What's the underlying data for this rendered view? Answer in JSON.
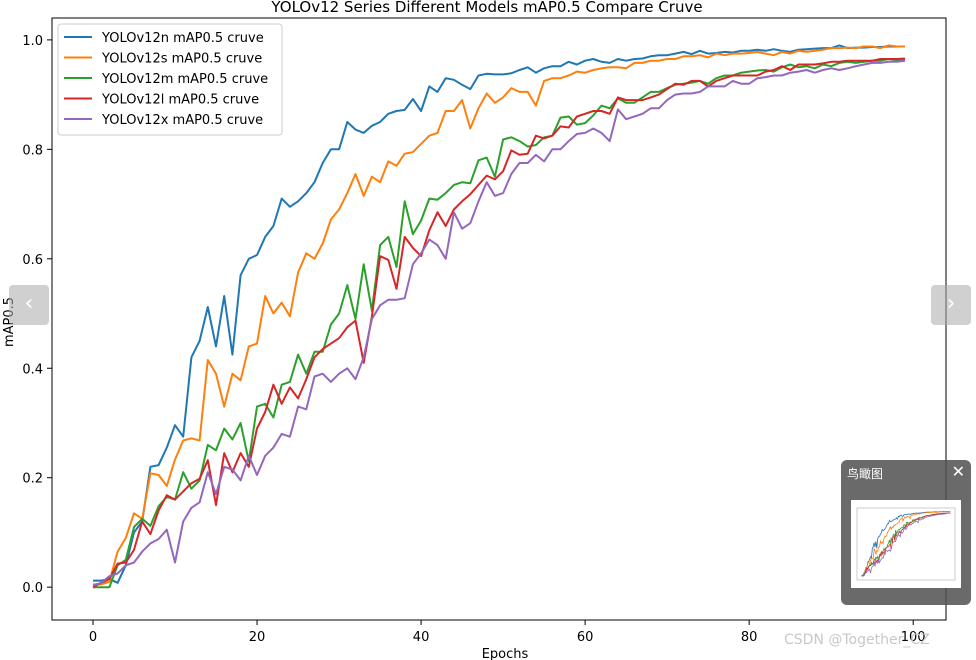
{
  "chart_data": {
    "type": "line",
    "title": "YOLOv12 Series Different Models mAP0.5 Compare Cruve",
    "xlabel": "Epochs",
    "ylabel": "mAP0.5",
    "xlim": [
      -5,
      104
    ],
    "ylim": [
      -0.06,
      1.04
    ],
    "x_ticks": [
      "0",
      "20",
      "40",
      "60",
      "80",
      "100"
    ],
    "x_tick_values": [
      0,
      20,
      40,
      60,
      80,
      100
    ],
    "y_ticks": [
      "0.0",
      "0.2",
      "0.4",
      "0.6",
      "0.8",
      "1.0"
    ],
    "y_tick_values": [
      0,
      0.2,
      0.4,
      0.6,
      0.8,
      1.0
    ],
    "grid": false,
    "legend_position": "top-left",
    "x": [
      0,
      1,
      2,
      3,
      4,
      5,
      6,
      7,
      8,
      9,
      10,
      11,
      12,
      13,
      14,
      15,
      16,
      17,
      18,
      19,
      20,
      21,
      22,
      23,
      24,
      25,
      26,
      27,
      28,
      29,
      30,
      31,
      32,
      33,
      34,
      35,
      36,
      37,
      38,
      39,
      40,
      41,
      42,
      43,
      44,
      45,
      46,
      47,
      48,
      49,
      50,
      51,
      52,
      53,
      54,
      55,
      56,
      57,
      58,
      59,
      60,
      61,
      62,
      63,
      64,
      65,
      66,
      67,
      68,
      69,
      70,
      71,
      72,
      73,
      74,
      75,
      76,
      77,
      78,
      79,
      80,
      81,
      82,
      83,
      84,
      85,
      86,
      87,
      88,
      89,
      90,
      91,
      92,
      93,
      94,
      95,
      96,
      97,
      98,
      99
    ],
    "series": [
      {
        "name": "YOLOv12n mAP0.5 cruve",
        "color": "#1f77b4",
        "values": [
          0.012,
          0.012,
          0.015,
          0.008,
          0.04,
          0.1,
          0.12,
          0.22,
          0.223,
          0.255,
          0.296,
          0.275,
          0.42,
          0.45,
          0.512,
          0.44,
          0.532,
          0.425,
          0.57,
          0.6,
          0.607,
          0.64,
          0.66,
          0.71,
          0.695,
          0.705,
          0.72,
          0.74,
          0.775,
          0.8,
          0.8,
          0.85,
          0.836,
          0.83,
          0.843,
          0.85,
          0.865,
          0.87,
          0.872,
          0.892,
          0.87,
          0.915,
          0.905,
          0.93,
          0.927,
          0.918,
          0.91,
          0.935,
          0.938,
          0.937,
          0.937,
          0.939,
          0.945,
          0.95,
          0.94,
          0.948,
          0.952,
          0.952,
          0.96,
          0.955,
          0.962,
          0.965,
          0.96,
          0.958,
          0.965,
          0.962,
          0.965,
          0.966,
          0.97,
          0.972,
          0.972,
          0.975,
          0.978,
          0.974,
          0.98,
          0.975,
          0.976,
          0.978,
          0.977,
          0.98,
          0.98,
          0.982,
          0.98,
          0.983,
          0.98,
          0.978,
          0.982,
          0.983,
          0.984,
          0.985,
          0.985,
          0.99,
          0.985,
          0.986,
          0.986,
          0.987,
          0.987,
          0.988,
          0.988,
          0.988
        ]
      },
      {
        "name": "YOLOv12s mAP0.5 cruve",
        "color": "#ff7f0e",
        "values": [
          0.005,
          0.005,
          0.01,
          0.065,
          0.09,
          0.135,
          0.125,
          0.208,
          0.205,
          0.185,
          0.233,
          0.268,
          0.272,
          0.268,
          0.415,
          0.39,
          0.33,
          0.39,
          0.378,
          0.44,
          0.445,
          0.532,
          0.5,
          0.52,
          0.495,
          0.575,
          0.61,
          0.6,
          0.628,
          0.672,
          0.69,
          0.72,
          0.755,
          0.715,
          0.75,
          0.74,
          0.778,
          0.77,
          0.792,
          0.795,
          0.81,
          0.825,
          0.83,
          0.87,
          0.87,
          0.89,
          0.838,
          0.875,
          0.902,
          0.885,
          0.895,
          0.912,
          0.905,
          0.905,
          0.88,
          0.925,
          0.93,
          0.93,
          0.935,
          0.942,
          0.94,
          0.945,
          0.948,
          0.95,
          0.95,
          0.948,
          0.958,
          0.958,
          0.962,
          0.962,
          0.965,
          0.965,
          0.97,
          0.97,
          0.972,
          0.968,
          0.975,
          0.972,
          0.975,
          0.975,
          0.976,
          0.978,
          0.975,
          0.972,
          0.978,
          0.975,
          0.98,
          0.978,
          0.98,
          0.982,
          0.985,
          0.985,
          0.986,
          0.985,
          0.988,
          0.988,
          0.985,
          0.99,
          0.988,
          0.988
        ]
      },
      {
        "name": "YOLOv12m mAP0.5 cruve",
        "color": "#2ca02c",
        "values": [
          0.0,
          0.0,
          0.0,
          0.04,
          0.05,
          0.11,
          0.125,
          0.112,
          0.148,
          0.165,
          0.16,
          0.21,
          0.18,
          0.195,
          0.26,
          0.25,
          0.29,
          0.27,
          0.3,
          0.23,
          0.33,
          0.335,
          0.31,
          0.37,
          0.375,
          0.425,
          0.39,
          0.43,
          0.43,
          0.48,
          0.5,
          0.552,
          0.49,
          0.59,
          0.505,
          0.625,
          0.64,
          0.585,
          0.705,
          0.645,
          0.67,
          0.71,
          0.708,
          0.72,
          0.735,
          0.74,
          0.738,
          0.78,
          0.785,
          0.75,
          0.818,
          0.822,
          0.815,
          0.805,
          0.808,
          0.822,
          0.825,
          0.858,
          0.86,
          0.845,
          0.848,
          0.862,
          0.88,
          0.875,
          0.893,
          0.885,
          0.885,
          0.895,
          0.905,
          0.905,
          0.912,
          0.918,
          0.92,
          0.922,
          0.925,
          0.92,
          0.93,
          0.935,
          0.935,
          0.94,
          0.942,
          0.944,
          0.945,
          0.942,
          0.95,
          0.955,
          0.95,
          0.952,
          0.948,
          0.955,
          0.952,
          0.958,
          0.96,
          0.958,
          0.96,
          0.962,
          0.962,
          0.965,
          0.963,
          0.965
        ]
      },
      {
        "name": "YOLOv12l mAP0.5 cruve",
        "color": "#d62728",
        "values": [
          0.0,
          0.008,
          0.015,
          0.043,
          0.045,
          0.068,
          0.12,
          0.097,
          0.14,
          0.168,
          0.16,
          0.175,
          0.19,
          0.198,
          0.232,
          0.15,
          0.245,
          0.21,
          0.245,
          0.22,
          0.29,
          0.32,
          0.37,
          0.335,
          0.365,
          0.345,
          0.38,
          0.42,
          0.435,
          0.445,
          0.455,
          0.475,
          0.487,
          0.41,
          0.495,
          0.605,
          0.598,
          0.545,
          0.64,
          0.62,
          0.605,
          0.652,
          0.685,
          0.66,
          0.69,
          0.705,
          0.718,
          0.735,
          0.752,
          0.745,
          0.76,
          0.798,
          0.79,
          0.792,
          0.825,
          0.82,
          0.825,
          0.842,
          0.84,
          0.86,
          0.865,
          0.87,
          0.87,
          0.865,
          0.895,
          0.89,
          0.89,
          0.89,
          0.895,
          0.9,
          0.91,
          0.92,
          0.918,
          0.925,
          0.925,
          0.915,
          0.925,
          0.93,
          0.935,
          0.935,
          0.935,
          0.935,
          0.942,
          0.945,
          0.952,
          0.945,
          0.955,
          0.955,
          0.955,
          0.957,
          0.96,
          0.96,
          0.962,
          0.962,
          0.962,
          0.962,
          0.965,
          0.965,
          0.965,
          0.966
        ]
      },
      {
        "name": "YOLOv12x mAP0.5 cruve",
        "color": "#9467bd",
        "values": [
          0.003,
          0.008,
          0.02,
          0.025,
          0.04,
          0.045,
          0.065,
          0.08,
          0.088,
          0.105,
          0.045,
          0.12,
          0.145,
          0.155,
          0.21,
          0.17,
          0.22,
          0.215,
          0.195,
          0.24,
          0.205,
          0.24,
          0.255,
          0.28,
          0.275,
          0.33,
          0.325,
          0.385,
          0.39,
          0.375,
          0.39,
          0.4,
          0.38,
          0.42,
          0.49,
          0.515,
          0.525,
          0.525,
          0.528,
          0.59,
          0.61,
          0.635,
          0.625,
          0.6,
          0.685,
          0.655,
          0.665,
          0.705,
          0.74,
          0.715,
          0.72,
          0.755,
          0.775,
          0.775,
          0.79,
          0.778,
          0.8,
          0.8,
          0.815,
          0.828,
          0.83,
          0.838,
          0.83,
          0.815,
          0.873,
          0.855,
          0.86,
          0.865,
          0.875,
          0.875,
          0.89,
          0.9,
          0.902,
          0.902,
          0.905,
          0.915,
          0.915,
          0.915,
          0.925,
          0.92,
          0.92,
          0.93,
          0.932,
          0.935,
          0.935,
          0.94,
          0.942,
          0.945,
          0.94,
          0.945,
          0.948,
          0.945,
          0.948,
          0.952,
          0.955,
          0.958,
          0.958,
          0.96,
          0.96,
          0.962
        ]
      }
    ]
  },
  "nav": {
    "prev_icon": "‹",
    "next_icon": "›"
  },
  "overview": {
    "title": "鸟瞰图",
    "close_icon": "✕"
  },
  "watermark": {
    "text": "CSDN @Together_CZ"
  }
}
